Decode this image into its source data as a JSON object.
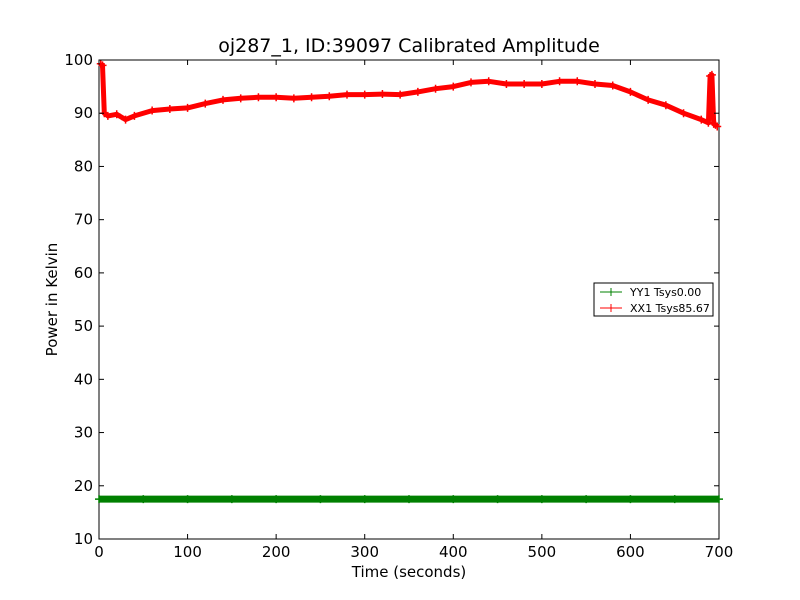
{
  "chart_data": {
    "type": "line",
    "title": "oj287_1, ID:39097 Calibrated Amplitude",
    "xlabel": "Time (seconds)",
    "ylabel": "Power in Kelvin",
    "xlim": [
      0,
      700
    ],
    "ylim": [
      10,
      100
    ],
    "xticks": [
      0,
      100,
      200,
      300,
      400,
      500,
      600,
      700
    ],
    "yticks": [
      10,
      20,
      30,
      40,
      50,
      60,
      70,
      80,
      90,
      100
    ],
    "grid": false,
    "legend_position": "center-right",
    "series": [
      {
        "name": "YY1 Tsys0.00",
        "color": "#008000",
        "marker": "+",
        "x": [
          0,
          50,
          100,
          150,
          200,
          250,
          300,
          350,
          400,
          450,
          500,
          550,
          600,
          650,
          700
        ],
        "y": [
          17.5,
          17.5,
          17.5,
          17.5,
          17.5,
          17.5,
          17.5,
          17.5,
          17.5,
          17.5,
          17.5,
          17.5,
          17.5,
          17.5,
          17.5
        ]
      },
      {
        "name": "XX1 Tsys85.67",
        "color": "#ff0000",
        "marker": "+",
        "x": [
          2,
          4,
          6,
          10,
          20,
          30,
          40,
          60,
          80,
          100,
          120,
          140,
          160,
          180,
          200,
          220,
          240,
          260,
          280,
          300,
          320,
          340,
          360,
          380,
          400,
          420,
          440,
          460,
          480,
          500,
          520,
          540,
          560,
          580,
          600,
          620,
          640,
          660,
          680,
          688,
          690,
          692,
          694,
          696,
          698
        ],
        "y": [
          99.3,
          99.0,
          90.0,
          89.5,
          89.8,
          88.8,
          89.5,
          90.5,
          90.8,
          91.0,
          91.8,
          92.5,
          92.8,
          93.0,
          93.0,
          92.8,
          93.0,
          93.2,
          93.5,
          93.5,
          93.6,
          93.5,
          94.0,
          94.6,
          95.0,
          95.8,
          96.0,
          95.5,
          95.5,
          95.5,
          96.0,
          96.0,
          95.5,
          95.2,
          94.0,
          92.5,
          91.5,
          90.0,
          88.8,
          88.2,
          97.0,
          97.2,
          88.0,
          87.8,
          87.5
        ]
      }
    ]
  }
}
